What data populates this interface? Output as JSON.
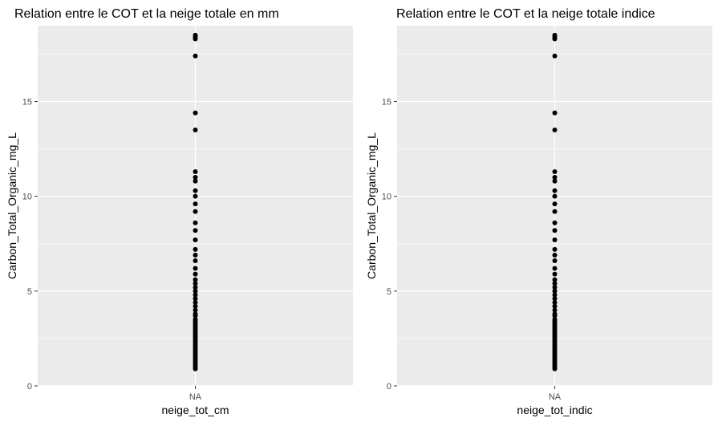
{
  "chart_data": [
    {
      "type": "scatter",
      "title": "Relation entre le COT et la neige totale en mm",
      "xlabel": "neige_tot_cm",
      "ylabel": "Carbon_Total_Organic_mg_L",
      "x_categories": [
        "NA"
      ],
      "ylim": [
        0,
        19
      ],
      "yticks": [
        0,
        5,
        10,
        15
      ],
      "grid": true,
      "legend": "none",
      "colors": {
        "panel": "#ebebeb",
        "grid": "#ffffff",
        "point": "#000000",
        "axis_text": "#4d4d4d"
      },
      "points": [
        {
          "x": "NA",
          "y": 18.5
        },
        {
          "x": "NA",
          "y": 18.4
        },
        {
          "x": "NA",
          "y": 18.3
        },
        {
          "x": "NA",
          "y": 17.4
        },
        {
          "x": "NA",
          "y": 14.4
        },
        {
          "x": "NA",
          "y": 13.5
        },
        {
          "x": "NA",
          "y": 11.3
        },
        {
          "x": "NA",
          "y": 11.0
        },
        {
          "x": "NA",
          "y": 10.8
        },
        {
          "x": "NA",
          "y": 10.3
        },
        {
          "x": "NA",
          "y": 10.0
        },
        {
          "x": "NA",
          "y": 9.6
        },
        {
          "x": "NA",
          "y": 9.2
        },
        {
          "x": "NA",
          "y": 8.6
        },
        {
          "x": "NA",
          "y": 8.2
        },
        {
          "x": "NA",
          "y": 7.7
        },
        {
          "x": "NA",
          "y": 7.2
        },
        {
          "x": "NA",
          "y": 6.9
        },
        {
          "x": "NA",
          "y": 6.6
        },
        {
          "x": "NA",
          "y": 6.2
        },
        {
          "x": "NA",
          "y": 5.9
        },
        {
          "x": "NA",
          "y": 5.6
        },
        {
          "x": "NA",
          "y": 5.4
        },
        {
          "x": "NA",
          "y": 5.2
        },
        {
          "x": "NA",
          "y": 5.0
        },
        {
          "x": "NA",
          "y": 4.8
        },
        {
          "x": "NA",
          "y": 4.6
        },
        {
          "x": "NA",
          "y": 4.4
        },
        {
          "x": "NA",
          "y": 4.2
        },
        {
          "x": "NA",
          "y": 4.0
        },
        {
          "x": "NA",
          "y": 3.8
        },
        {
          "x": "NA",
          "y": 3.7
        },
        {
          "x": "NA",
          "y": 3.5
        },
        {
          "x": "NA",
          "y": 3.4
        },
        {
          "x": "NA",
          "y": 3.3
        },
        {
          "x": "NA",
          "y": 3.2
        },
        {
          "x": "NA",
          "y": 3.1
        },
        {
          "x": "NA",
          "y": 3.0
        },
        {
          "x": "NA",
          "y": 2.9
        },
        {
          "x": "NA",
          "y": 2.8
        },
        {
          "x": "NA",
          "y": 2.7
        },
        {
          "x": "NA",
          "y": 2.6
        },
        {
          "x": "NA",
          "y": 2.5
        },
        {
          "x": "NA",
          "y": 2.4
        },
        {
          "x": "NA",
          "y": 2.3
        },
        {
          "x": "NA",
          "y": 2.2
        },
        {
          "x": "NA",
          "y": 2.1
        },
        {
          "x": "NA",
          "y": 2.0
        },
        {
          "x": "NA",
          "y": 1.9
        },
        {
          "x": "NA",
          "y": 1.8
        },
        {
          "x": "NA",
          "y": 1.7
        },
        {
          "x": "NA",
          "y": 1.6
        },
        {
          "x": "NA",
          "y": 1.5
        },
        {
          "x": "NA",
          "y": 1.4
        },
        {
          "x": "NA",
          "y": 1.3
        },
        {
          "x": "NA",
          "y": 1.2
        },
        {
          "x": "NA",
          "y": 1.1
        },
        {
          "x": "NA",
          "y": 1.0
        },
        {
          "x": "NA",
          "y": 0.9
        }
      ]
    },
    {
      "type": "scatter",
      "title": "Relation entre le COT et la neige totale indice",
      "xlabel": "neige_tot_indic",
      "ylabel": "Carbon_Total_Organic_mg_L",
      "x_categories": [
        "NA"
      ],
      "ylim": [
        0,
        19
      ],
      "yticks": [
        0,
        5,
        10,
        15
      ],
      "grid": true,
      "legend": "none",
      "colors": {
        "panel": "#ebebeb",
        "grid": "#ffffff",
        "point": "#000000",
        "axis_text": "#4d4d4d"
      },
      "points": [
        {
          "x": "NA",
          "y": 18.5
        },
        {
          "x": "NA",
          "y": 18.4
        },
        {
          "x": "NA",
          "y": 18.3
        },
        {
          "x": "NA",
          "y": 17.4
        },
        {
          "x": "NA",
          "y": 14.4
        },
        {
          "x": "NA",
          "y": 13.5
        },
        {
          "x": "NA",
          "y": 11.3
        },
        {
          "x": "NA",
          "y": 11.0
        },
        {
          "x": "NA",
          "y": 10.8
        },
        {
          "x": "NA",
          "y": 10.3
        },
        {
          "x": "NA",
          "y": 10.0
        },
        {
          "x": "NA",
          "y": 9.6
        },
        {
          "x": "NA",
          "y": 9.2
        },
        {
          "x": "NA",
          "y": 8.6
        },
        {
          "x": "NA",
          "y": 8.2
        },
        {
          "x": "NA",
          "y": 7.7
        },
        {
          "x": "NA",
          "y": 7.2
        },
        {
          "x": "NA",
          "y": 6.9
        },
        {
          "x": "NA",
          "y": 6.6
        },
        {
          "x": "NA",
          "y": 6.2
        },
        {
          "x": "NA",
          "y": 5.9
        },
        {
          "x": "NA",
          "y": 5.6
        },
        {
          "x": "NA",
          "y": 5.4
        },
        {
          "x": "NA",
          "y": 5.2
        },
        {
          "x": "NA",
          "y": 5.0
        },
        {
          "x": "NA",
          "y": 4.8
        },
        {
          "x": "NA",
          "y": 4.6
        },
        {
          "x": "NA",
          "y": 4.4
        },
        {
          "x": "NA",
          "y": 4.2
        },
        {
          "x": "NA",
          "y": 4.0
        },
        {
          "x": "NA",
          "y": 3.8
        },
        {
          "x": "NA",
          "y": 3.7
        },
        {
          "x": "NA",
          "y": 3.5
        },
        {
          "x": "NA",
          "y": 3.4
        },
        {
          "x": "NA",
          "y": 3.3
        },
        {
          "x": "NA",
          "y": 3.2
        },
        {
          "x": "NA",
          "y": 3.1
        },
        {
          "x": "NA",
          "y": 3.0
        },
        {
          "x": "NA",
          "y": 2.9
        },
        {
          "x": "NA",
          "y": 2.8
        },
        {
          "x": "NA",
          "y": 2.7
        },
        {
          "x": "NA",
          "y": 2.6
        },
        {
          "x": "NA",
          "y": 2.5
        },
        {
          "x": "NA",
          "y": 2.4
        },
        {
          "x": "NA",
          "y": 2.3
        },
        {
          "x": "NA",
          "y": 2.2
        },
        {
          "x": "NA",
          "y": 2.1
        },
        {
          "x": "NA",
          "y": 2.0
        },
        {
          "x": "NA",
          "y": 1.9
        },
        {
          "x": "NA",
          "y": 1.8
        },
        {
          "x": "NA",
          "y": 1.7
        },
        {
          "x": "NA",
          "y": 1.6
        },
        {
          "x": "NA",
          "y": 1.5
        },
        {
          "x": "NA",
          "y": 1.4
        },
        {
          "x": "NA",
          "y": 1.3
        },
        {
          "x": "NA",
          "y": 1.2
        },
        {
          "x": "NA",
          "y": 1.1
        },
        {
          "x": "NA",
          "y": 1.0
        },
        {
          "x": "NA",
          "y": 0.9
        }
      ]
    }
  ]
}
